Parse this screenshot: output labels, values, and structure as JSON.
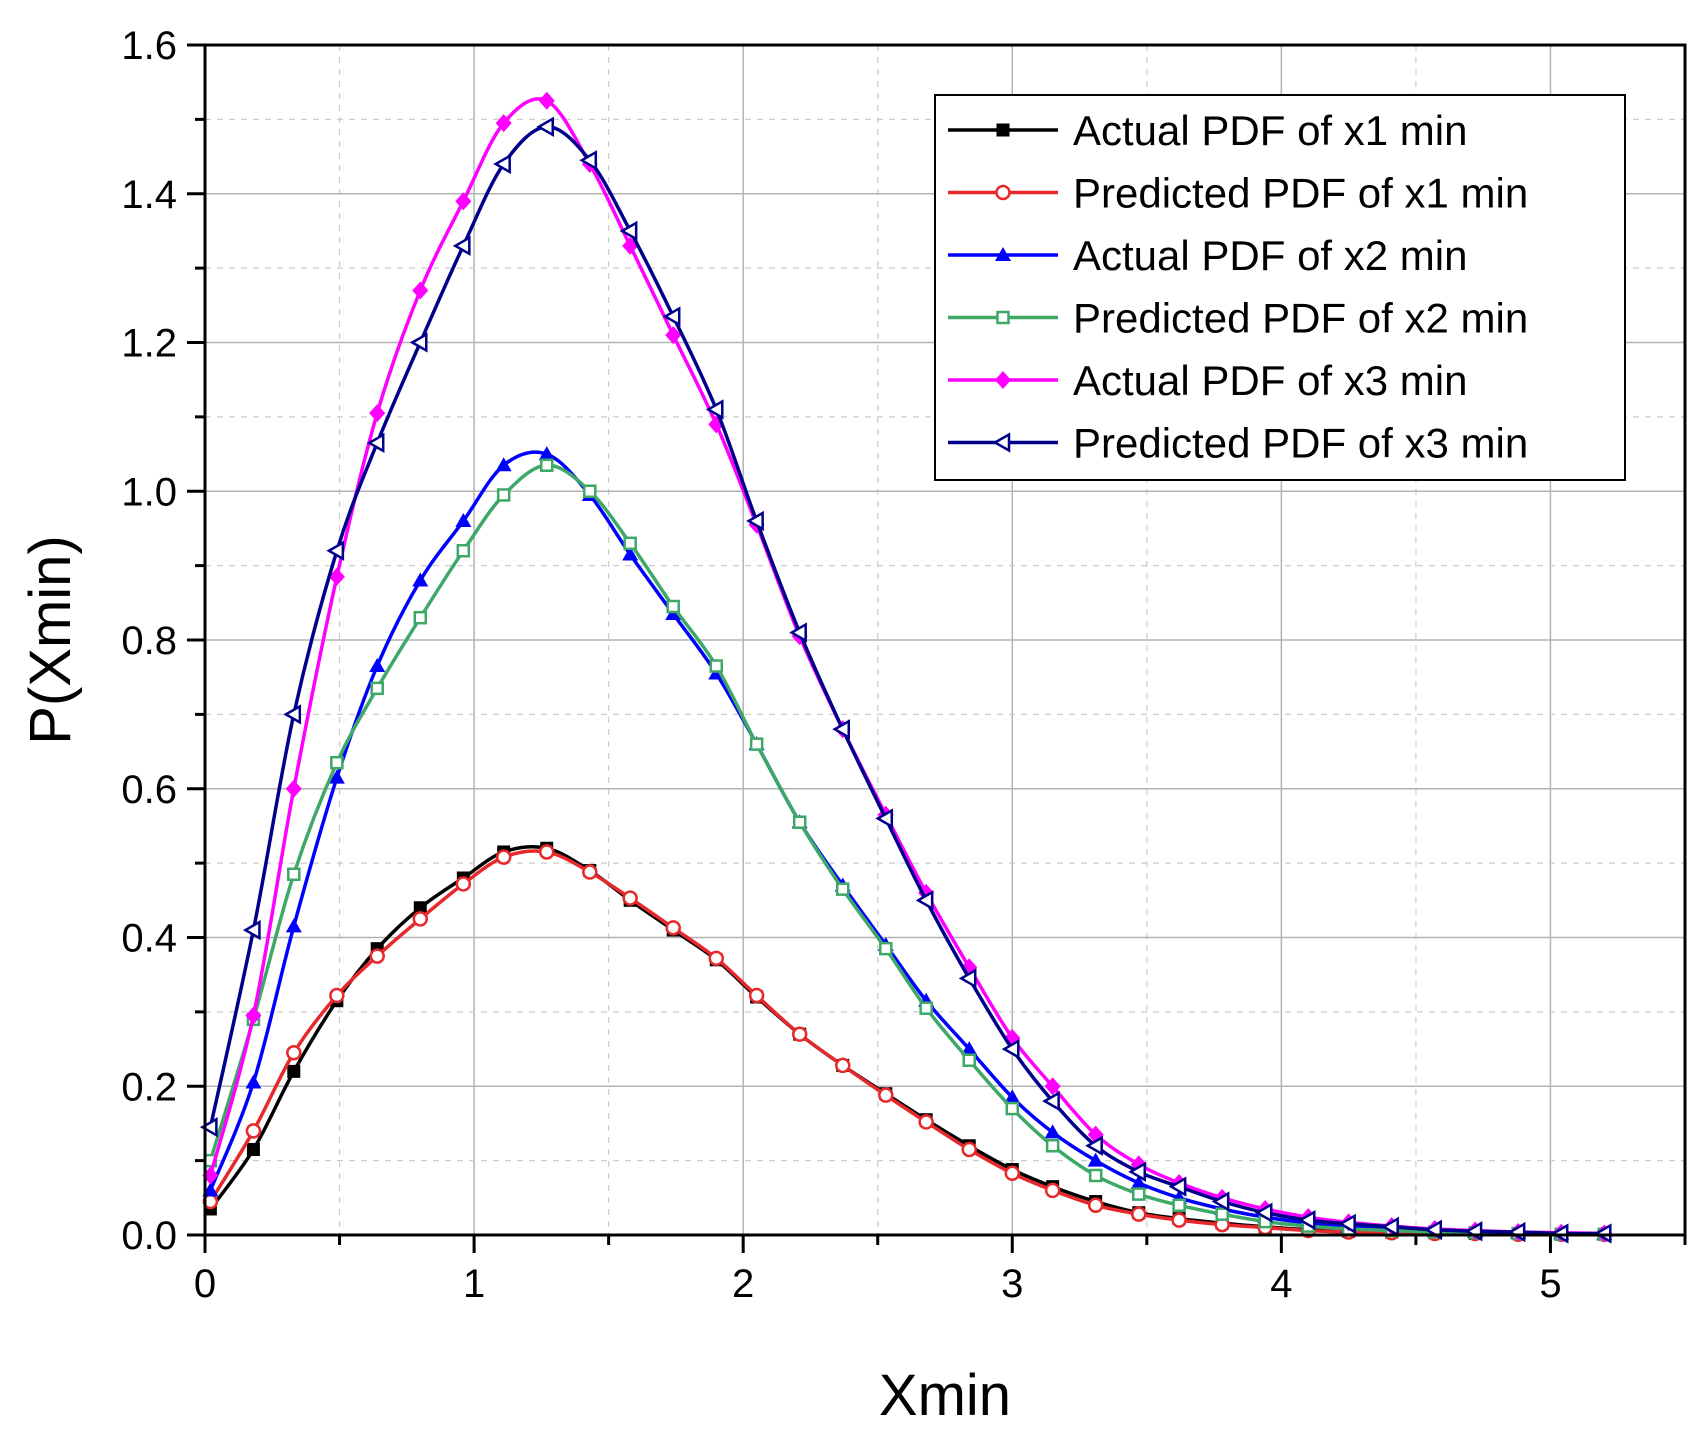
{
  "chart_data": {
    "type": "line",
    "title": "",
    "xlabel": "Xmin",
    "ylabel": "P(Xmin)",
    "xlim": [
      0,
      5.5
    ],
    "ylim": [
      0,
      1.6
    ],
    "xticks": [
      0,
      1,
      2,
      3,
      4,
      5
    ],
    "yticks": [
      0.0,
      0.2,
      0.4,
      0.6,
      0.8,
      1.0,
      1.2,
      1.4,
      1.6
    ],
    "xtick_labels": [
      "0",
      "1",
      "2",
      "3",
      "4",
      "5"
    ],
    "ytick_labels": [
      "0.0",
      "0.2",
      "0.4",
      "0.6",
      "0.8",
      "1.0",
      "1.2",
      "1.4",
      "1.6"
    ],
    "grid": true,
    "legend_position": "top-right",
    "x": [
      0.02,
      0.18,
      0.33,
      0.49,
      0.64,
      0.8,
      0.96,
      1.11,
      1.27,
      1.43,
      1.58,
      1.74,
      1.9,
      2.05,
      2.21,
      2.37,
      2.53,
      2.68,
      2.84,
      3.0,
      3.15,
      3.31,
      3.47,
      3.62,
      3.78,
      3.94,
      4.1,
      4.25,
      4.41,
      4.57,
      4.72,
      4.88,
      5.04,
      5.2
    ],
    "series": [
      {
        "name": "Actual PDF of x1 min",
        "color": "#000000",
        "marker": "square-filled",
        "values": [
          0.035,
          0.115,
          0.22,
          0.315,
          0.385,
          0.44,
          0.48,
          0.515,
          0.52,
          0.49,
          0.45,
          0.41,
          0.37,
          0.32,
          0.27,
          0.228,
          0.19,
          0.155,
          0.12,
          0.088,
          0.065,
          0.045,
          0.03,
          0.022,
          0.016,
          0.011,
          0.007,
          0.005,
          0.004,
          0.003,
          0.002,
          0.002,
          0.001,
          0.001
        ]
      },
      {
        "name": "Predicted PDF of x1 min",
        "color": "#e8292b",
        "marker": "circle-open",
        "values": [
          0.045,
          0.14,
          0.245,
          0.322,
          0.375,
          0.425,
          0.472,
          0.508,
          0.515,
          0.488,
          0.453,
          0.413,
          0.372,
          0.322,
          0.27,
          0.228,
          0.188,
          0.152,
          0.115,
          0.083,
          0.06,
          0.04,
          0.028,
          0.02,
          0.014,
          0.01,
          0.006,
          0.004,
          0.003,
          0.002,
          0.002,
          0.001,
          0.001,
          0.001
        ]
      },
      {
        "name": "Actual PDF of x2 min",
        "color": "#0000ff",
        "marker": "triangle-up-filled",
        "values": [
          0.06,
          0.205,
          0.415,
          0.615,
          0.765,
          0.88,
          0.96,
          1.035,
          1.05,
          0.995,
          0.915,
          0.835,
          0.755,
          0.66,
          0.555,
          0.47,
          0.39,
          0.315,
          0.25,
          0.185,
          0.138,
          0.1,
          0.07,
          0.05,
          0.035,
          0.024,
          0.016,
          0.011,
          0.008,
          0.005,
          0.004,
          0.003,
          0.002,
          0.001
        ]
      },
      {
        "name": "Predicted PDF of x2 min",
        "color": "#3ea867",
        "marker": "square-open",
        "values": [
          0.1,
          0.29,
          0.485,
          0.635,
          0.735,
          0.83,
          0.92,
          0.995,
          1.035,
          1.0,
          0.93,
          0.845,
          0.765,
          0.66,
          0.555,
          0.465,
          0.385,
          0.305,
          0.235,
          0.17,
          0.12,
          0.08,
          0.055,
          0.04,
          0.028,
          0.018,
          0.012,
          0.008,
          0.006,
          0.004,
          0.003,
          0.002,
          0.001,
          0.001
        ]
      },
      {
        "name": "Actual PDF of x3 min",
        "color": "#ff00ff",
        "marker": "diamond-filled",
        "values": [
          0.08,
          0.295,
          0.6,
          0.885,
          1.105,
          1.27,
          1.39,
          1.495,
          1.525,
          1.44,
          1.33,
          1.21,
          1.09,
          0.955,
          0.805,
          0.68,
          0.565,
          0.46,
          0.36,
          0.265,
          0.2,
          0.135,
          0.095,
          0.07,
          0.05,
          0.035,
          0.024,
          0.017,
          0.012,
          0.008,
          0.006,
          0.004,
          0.003,
          0.002
        ]
      },
      {
        "name": "Predicted PDF of x3 min",
        "color": "#00008b",
        "marker": "triangle-left-open",
        "values": [
          0.145,
          0.41,
          0.7,
          0.92,
          1.065,
          1.2,
          1.33,
          1.44,
          1.49,
          1.445,
          1.35,
          1.235,
          1.11,
          0.96,
          0.81,
          0.68,
          0.56,
          0.45,
          0.345,
          0.25,
          0.18,
          0.12,
          0.085,
          0.065,
          0.045,
          0.03,
          0.02,
          0.015,
          0.011,
          0.007,
          0.005,
          0.004,
          0.002,
          0.002
        ]
      }
    ]
  }
}
